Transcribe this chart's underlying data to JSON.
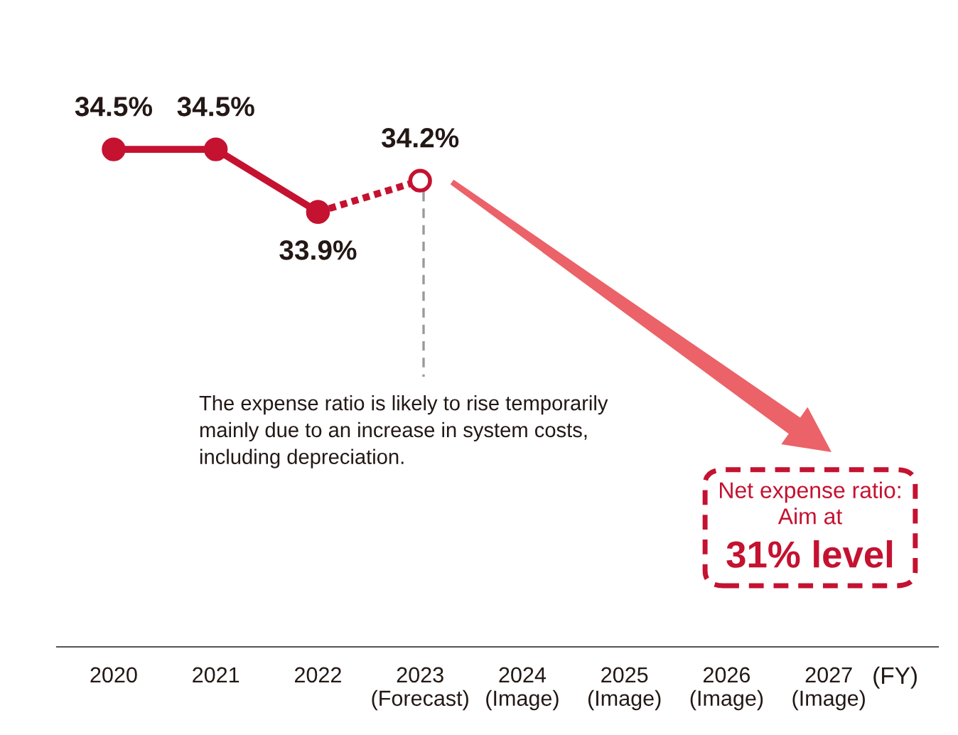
{
  "chart_data": {
    "type": "line",
    "categories": [
      "2020",
      "2021",
      "2022",
      "2023\n(Forecast)",
      "2024\n(Image)",
      "2025\n(Image)",
      "2026\n(Image)",
      "2027\n(Image)"
    ],
    "xlabel": "(FY)",
    "series": [
      {
        "color": "#c41230",
        "line_style": "dotted",
        "marker": "circle",
        "values": [
          null,
          null,
          33.9,
          34.2,
          null,
          null,
          null,
          null
        ],
        "value_labels": [
          null,
          null,
          null,
          "34.2%",
          null,
          null,
          null,
          null
        ]
      },
      {
        "color": "#c41230",
        "line_style": "solid",
        "marker": "circle",
        "values": [
          34.5,
          34.5,
          33.9,
          null,
          null,
          null,
          null,
          null
        ],
        "value_labels": [
          "34.5%",
          "34.5%",
          "33.9%",
          null,
          null,
          null,
          null,
          null
        ]
      }
    ],
    "annotations": [
      "The expense ratio is likely to rise temporarily\nmainly due to an increase in system costs,\nincluding depreciation.",
      "Net expense ratio:\nAim at\n31% level"
    ],
    "tick_labels": "x"
  }
}
